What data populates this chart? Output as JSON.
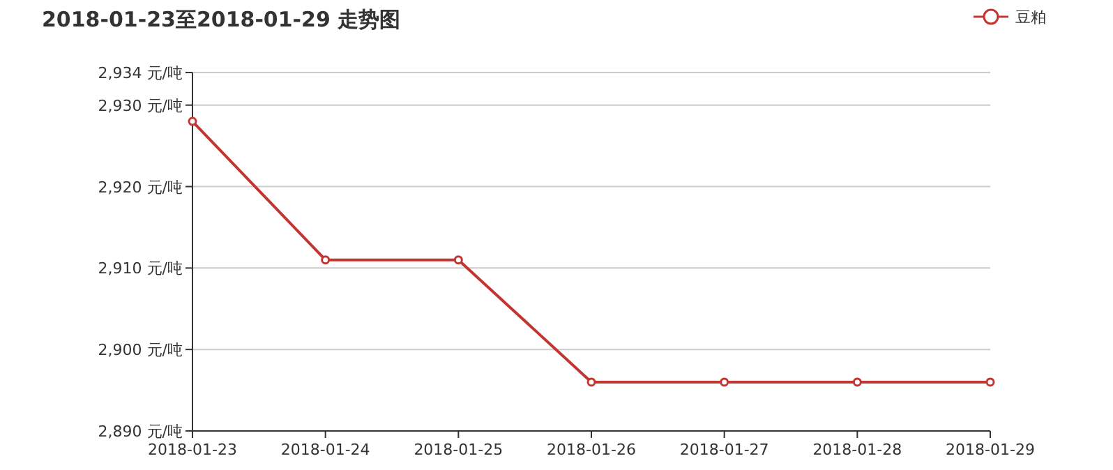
{
  "chart_data": {
    "type": "line",
    "title": "2018-01-23至2018-01-29 走势图",
    "categories": [
      "2018-01-23",
      "2018-01-24",
      "2018-01-25",
      "2018-01-26",
      "2018-01-27",
      "2018-01-28",
      "2018-01-29"
    ],
    "series": [
      {
        "name": "豆粕",
        "color": "#c23531",
        "values": [
          2928,
          2911,
          2911,
          2896,
          2896,
          2896,
          2896
        ]
      }
    ],
    "ylim": [
      2890,
      2934
    ],
    "yticks": [
      {
        "value": 2890,
        "label": "2,890 元/吨"
      },
      {
        "value": 2900,
        "label": "2,900 元/吨"
      },
      {
        "value": 2910,
        "label": "2,910 元/吨"
      },
      {
        "value": 2920,
        "label": "2,920 元/吨"
      },
      {
        "value": 2930,
        "label": "2,930 元/吨"
      },
      {
        "value": 2934,
        "label": "2,934 元/吨"
      }
    ],
    "grid": "y",
    "legend": "top right",
    "marker": "circle",
    "line_style": "solid"
  }
}
